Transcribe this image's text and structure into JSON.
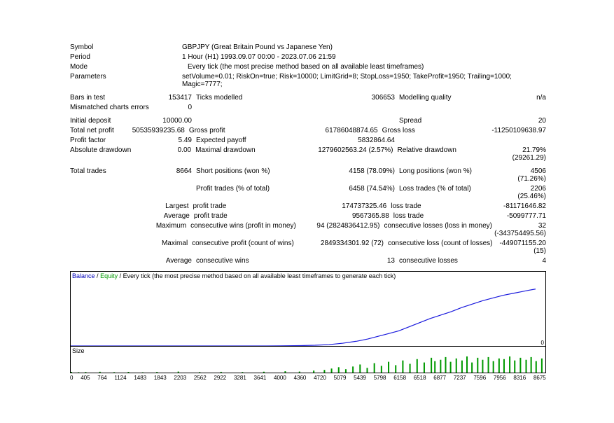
{
  "labels": {
    "symbol": "Symbol",
    "period": "Period",
    "mode": "Mode",
    "parameters": "Parameters",
    "bars_in_test": "Bars in test",
    "ticks_modelled": "Ticks modelled",
    "modelling_quality": "Modelling quality",
    "mismatched": "Mismatched charts errors",
    "initial_deposit": "Initial deposit",
    "spread": "Spread",
    "total_net_profit": "Total net profit",
    "gross_profit": "Gross profit",
    "gross_loss": "Gross loss",
    "profit_factor": "Profit factor",
    "expected_payoff": "Expected payoff",
    "absolute_drawdown": "Absolute drawdown",
    "maximal_drawdown": "Maximal drawdown",
    "relative_drawdown": "Relative drawdown",
    "total_trades": "Total trades",
    "short_pos": "Short positions (won %)",
    "long_pos": "Long positions (won %)",
    "profit_trades": "Profit trades (% of total)",
    "loss_trades": "Loss trades (% of total)",
    "largest": "Largest",
    "average": "Average",
    "maximum": "Maximum",
    "maximal": "Maximal",
    "profit_trade": "profit trade",
    "loss_trade": "loss trade",
    "cons_wins_money": "consecutive wins (profit in money)",
    "cons_losses_money": "consecutive losses (loss in money)",
    "cons_profit_count": "consecutive profit (count of wins)",
    "cons_loss_count": "consecutive loss (count of losses)",
    "cons_wins": "consecutive wins",
    "cons_losses": "consecutive losses"
  },
  "values": {
    "symbol": "GBPJPY (Great Britain Pound vs Japanese Yen)",
    "period": "1 Hour (H1) 1993.09.07 00:00 - 2023.07.06 21:59",
    "mode": "Every tick (the most precise method based on all available least timeframes)",
    "parameters": "setVolume=0.01; RiskOn=true; Risk=10000; LimitGrid=8; StopLoss=1950; TakeProfit=1950; Trailing=1000; Magic=7777;",
    "bars_in_test": "153417",
    "ticks_modelled": "306653",
    "modelling_quality": "n/a",
    "mismatched": "0",
    "initial_deposit": "10000.00",
    "spread": "20",
    "total_net_profit": "50535939235.68",
    "gross_profit": "61786048874.65",
    "gross_loss": "-11250109638.97",
    "profit_factor": "5.49",
    "expected_payoff": "5832864.64",
    "absolute_drawdown": "0.00",
    "maximal_drawdown": "1279602563.24 (2.57%)",
    "relative_drawdown": "21.79% (29261.29)",
    "total_trades": "8664",
    "short_pos": "4158 (78.09%)",
    "long_pos": "4506 (71.26%)",
    "profit_trades": "6458 (74.54%)",
    "loss_trades": "2206 (25.46%)",
    "largest_profit": "174737325.46",
    "largest_loss": "-81171646.82",
    "avg_profit": "9567365.88",
    "avg_loss": "-5099777.71",
    "max_cons_wins": "94 (2824836412.95)",
    "max_cons_losses": "32 (-343754495.56)",
    "max_cons_profit": "2849334301.92 (72)",
    "max_cons_loss": "-449071155.20 (15)",
    "avg_cons_wins": "13",
    "avg_cons_losses": "4"
  },
  "chart": {
    "legend_balance": "Balance",
    "legend_equity": "Equity",
    "legend_tail": " / Every tick (the most precise method based on all available least timeframes to generate each tick)",
    "size_label": "Size",
    "zero": "0",
    "xaxis": [
      "0",
      "405",
      "764",
      "1124",
      "1483",
      "1843",
      "2203",
      "2562",
      "2922",
      "3281",
      "3641",
      "4000",
      "4360",
      "4720",
      "5079",
      "5439",
      "5798",
      "6158",
      "6518",
      "6877",
      "7237",
      "7596",
      "7956",
      "8316",
      "8675"
    ],
    "balance_color": "#1a1add",
    "equity_color": "#009900",
    "size_color": "#009900",
    "grid_color": "#000000",
    "background": "#ffffff",
    "equity_points": [
      [
        0,
        94
      ],
      [
        30,
        94
      ],
      [
        60,
        94
      ],
      [
        90,
        94
      ],
      [
        120,
        94
      ],
      [
        150,
        94
      ],
      [
        180,
        94
      ],
      [
        210,
        94
      ],
      [
        240,
        94
      ],
      [
        270,
        94
      ],
      [
        300,
        93.8
      ],
      [
        330,
        93.5
      ],
      [
        350,
        93
      ],
      [
        370,
        92
      ],
      [
        390,
        90
      ],
      [
        410,
        87
      ],
      [
        425,
        84
      ],
      [
        440,
        80
      ],
      [
        455,
        76
      ],
      [
        470,
        72
      ],
      [
        485,
        66
      ],
      [
        500,
        60
      ],
      [
        515,
        54
      ],
      [
        530,
        49
      ],
      [
        545,
        44
      ],
      [
        560,
        38
      ],
      [
        575,
        33
      ],
      [
        590,
        28
      ],
      [
        605,
        24
      ],
      [
        620,
        20
      ],
      [
        635,
        17
      ],
      [
        645,
        15
      ],
      [
        655,
        13
      ],
      [
        663,
        11.5
      ],
      [
        666,
        11
      ]
    ],
    "size_bars": [
      [
        0,
        1
      ],
      [
        10,
        0.5
      ],
      [
        20,
        0.8
      ],
      [
        40,
        1.2
      ],
      [
        60,
        0.6
      ],
      [
        80,
        1
      ],
      [
        100,
        0.4
      ],
      [
        120,
        0.9
      ],
      [
        150,
        1.5
      ],
      [
        180,
        0.7
      ],
      [
        210,
        1.1
      ],
      [
        240,
        0.8
      ],
      [
        270,
        1.3
      ],
      [
        300,
        2
      ],
      [
        320,
        1.5
      ],
      [
        340,
        3
      ],
      [
        355,
        4
      ],
      [
        365,
        6
      ],
      [
        375,
        8
      ],
      [
        385,
        5
      ],
      [
        395,
        9
      ],
      [
        405,
        12
      ],
      [
        415,
        7
      ],
      [
        425,
        14
      ],
      [
        435,
        10
      ],
      [
        445,
        16
      ],
      [
        455,
        11
      ],
      [
        465,
        18
      ],
      [
        475,
        13
      ],
      [
        485,
        20
      ],
      [
        495,
        15
      ],
      [
        505,
        22
      ],
      [
        510,
        17
      ],
      [
        518,
        19
      ],
      [
        525,
        23
      ],
      [
        532,
        16
      ],
      [
        540,
        21
      ],
      [
        548,
        18
      ],
      [
        555,
        24
      ],
      [
        562,
        15
      ],
      [
        570,
        22
      ],
      [
        577,
        19
      ],
      [
        585,
        23
      ],
      [
        592,
        17
      ],
      [
        600,
        21
      ],
      [
        607,
        20
      ],
      [
        615,
        24
      ],
      [
        622,
        18
      ],
      [
        630,
        22
      ],
      [
        638,
        19
      ],
      [
        645,
        23
      ],
      [
        652,
        17
      ],
      [
        660,
        21
      ],
      [
        666,
        20
      ]
    ]
  }
}
